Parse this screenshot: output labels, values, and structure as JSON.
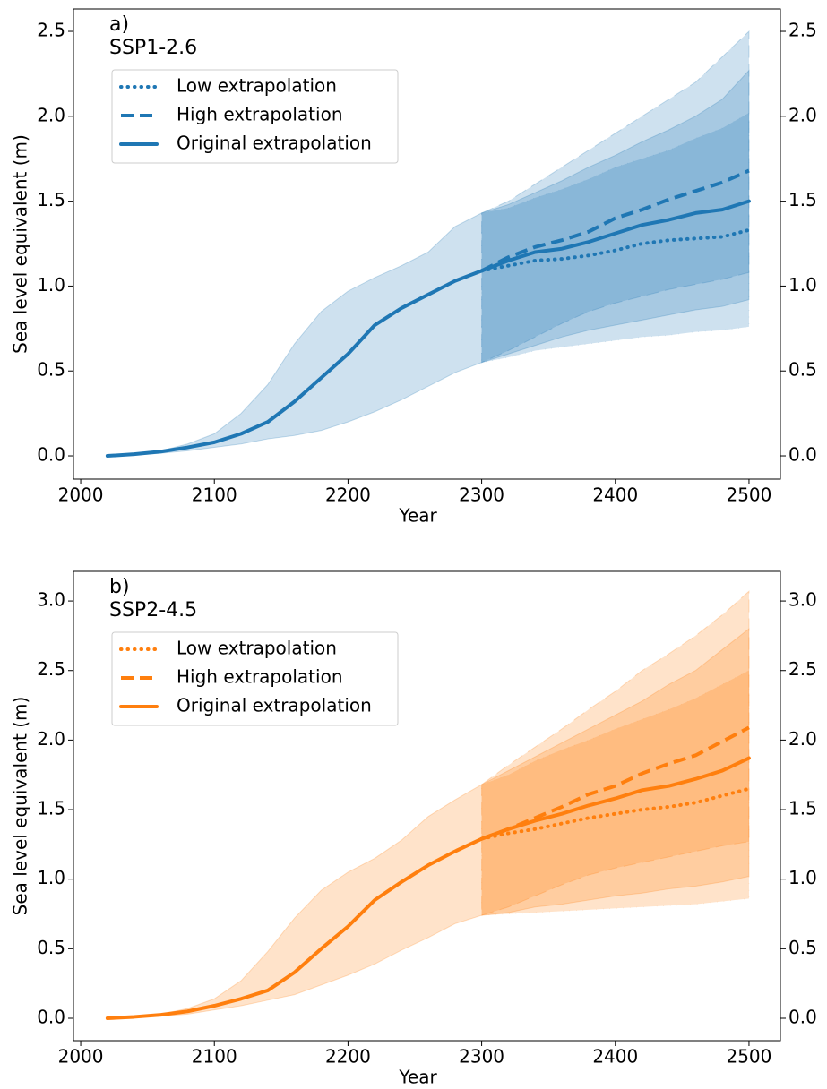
{
  "chart_data": [
    {
      "type": "line",
      "label": "a)",
      "title": "SSP1-2.6",
      "xlabel": "Year",
      "ylabel": "Sea level equivalent (m)",
      "x": [
        2020,
        2040,
        2060,
        2080,
        2100,
        2120,
        2140,
        2160,
        2180,
        2200,
        2220,
        2240,
        2260,
        2280,
        2300,
        2320,
        2340,
        2360,
        2380,
        2400,
        2420,
        2440,
        2460,
        2480,
        2500
      ],
      "xlim": [
        1994.6,
        2523.5
      ],
      "xticks": [
        2000,
        2100,
        2200,
        2300,
        2400,
        2500
      ],
      "ylim": [
        -0.137,
        2.632
      ],
      "yticks": [
        {
          "value": 0,
          "label": "0.0"
        },
        0.5,
        {
          "value": 1,
          "label": "1.0"
        },
        1.5,
        {
          "value": 2,
          "label": "2.0"
        },
        2.5
      ],
      "right_ticks": true,
      "legend": "upper left",
      "series": [
        {
          "name": "Low extrapolation",
          "color": "#1f77b4",
          "style": "dotted",
          "values": [
            null,
            null,
            null,
            null,
            null,
            null,
            null,
            null,
            null,
            null,
            null,
            null,
            null,
            null,
            1.09,
            1.12,
            1.15,
            1.16,
            1.18,
            1.21,
            1.25,
            1.27,
            1.28,
            1.29,
            1.33
          ],
          "lower": [
            null,
            null,
            null,
            null,
            null,
            null,
            null,
            null,
            null,
            null,
            null,
            null,
            null,
            null,
            0.55,
            0.58,
            0.62,
            0.64,
            0.66,
            0.68,
            0.7,
            0.71,
            0.73,
            0.74,
            0.76
          ],
          "upper": [
            null,
            null,
            null,
            null,
            null,
            null,
            null,
            null,
            null,
            null,
            null,
            null,
            null,
            null,
            1.43,
            1.46,
            1.52,
            1.57,
            1.63,
            1.7,
            1.75,
            1.8,
            1.87,
            1.93,
            2.02
          ]
        },
        {
          "name": "High extrapolation",
          "color": "#1f77b4",
          "style": "dashed",
          "values": [
            null,
            null,
            null,
            null,
            null,
            null,
            null,
            null,
            null,
            null,
            null,
            null,
            null,
            null,
            1.09,
            1.17,
            1.23,
            1.27,
            1.32,
            1.4,
            1.45,
            1.51,
            1.56,
            1.61,
            1.68
          ],
          "lower": [
            null,
            null,
            null,
            null,
            null,
            null,
            null,
            null,
            null,
            null,
            null,
            null,
            null,
            null,
            0.55,
            0.62,
            0.7,
            0.78,
            0.85,
            0.9,
            0.94,
            0.98,
            1.01,
            1.04,
            1.08
          ],
          "upper": [
            null,
            null,
            null,
            null,
            null,
            null,
            null,
            null,
            null,
            null,
            null,
            null,
            null,
            null,
            1.43,
            1.5,
            1.6,
            1.7,
            1.8,
            1.9,
            2.0,
            2.1,
            2.2,
            2.35,
            2.5
          ]
        },
        {
          "name": "Original extrapolation",
          "color": "#1f77b4",
          "style": "solid",
          "values": [
            0,
            0.01,
            0.025,
            0.05,
            0.08,
            0.13,
            0.2,
            0.32,
            0.46,
            0.6,
            0.77,
            0.87,
            0.95,
            1.03,
            1.09,
            1.15,
            1.2,
            1.22,
            1.26,
            1.31,
            1.36,
            1.39,
            1.43,
            1.45,
            1.5
          ],
          "lower": [
            0,
            0.005,
            0.015,
            0.03,
            0.05,
            0.07,
            0.1,
            0.12,
            0.15,
            0.2,
            0.26,
            0.33,
            0.41,
            0.49,
            0.55,
            0.6,
            0.65,
            0.7,
            0.74,
            0.77,
            0.8,
            0.83,
            0.86,
            0.88,
            0.92
          ],
          "upper": [
            0,
            0.01,
            0.03,
            0.07,
            0.13,
            0.25,
            0.42,
            0.66,
            0.85,
            0.97,
            1.05,
            1.12,
            1.2,
            1.35,
            1.43,
            1.48,
            1.55,
            1.62,
            1.7,
            1.77,
            1.85,
            1.92,
            2.0,
            2.1,
            2.27
          ]
        }
      ]
    },
    {
      "type": "line",
      "label": "b)",
      "title": "SSP2-4.5",
      "xlabel": "Year",
      "ylabel": "Sea level equivalent (m)",
      "x": [
        2020,
        2040,
        2060,
        2080,
        2100,
        2120,
        2140,
        2160,
        2180,
        2200,
        2220,
        2240,
        2260,
        2280,
        2300,
        2320,
        2340,
        2360,
        2380,
        2400,
        2420,
        2440,
        2460,
        2480,
        2500
      ],
      "xlim": [
        1994.6,
        2523.5
      ],
      "xticks": [
        2000,
        2100,
        2200,
        2300,
        2400,
        2500
      ],
      "ylim": [
        -0.161,
        3.213
      ],
      "yticks": [
        {
          "value": 0,
          "label": "0.0"
        },
        0.5,
        {
          "value": 1,
          "label": "1.0"
        },
        1.5,
        {
          "value": 2,
          "label": "2.0"
        },
        2.5,
        {
          "value": 3,
          "label": "3.0"
        }
      ],
      "right_ticks": true,
      "legend": "upper left",
      "series": [
        {
          "name": "Low extrapolation",
          "color": "#ff7f0e",
          "style": "dotted",
          "values": [
            null,
            null,
            null,
            null,
            null,
            null,
            null,
            null,
            null,
            null,
            null,
            null,
            null,
            null,
            1.29,
            1.33,
            1.36,
            1.4,
            1.44,
            1.47,
            1.5,
            1.52,
            1.55,
            1.6,
            1.65
          ],
          "lower": [
            null,
            null,
            null,
            null,
            null,
            null,
            null,
            null,
            null,
            null,
            null,
            null,
            null,
            null,
            0.74,
            0.75,
            0.76,
            0.77,
            0.78,
            0.79,
            0.8,
            0.81,
            0.82,
            0.84,
            0.86
          ],
          "upper": [
            null,
            null,
            null,
            null,
            null,
            null,
            null,
            null,
            null,
            null,
            null,
            null,
            null,
            null,
            1.68,
            1.75,
            1.85,
            1.93,
            2.0,
            2.08,
            2.15,
            2.22,
            2.3,
            2.4,
            2.5
          ]
        },
        {
          "name": "High extrapolation",
          "color": "#ff7f0e",
          "style": "dashed",
          "values": [
            null,
            null,
            null,
            null,
            null,
            null,
            null,
            null,
            null,
            null,
            null,
            null,
            null,
            null,
            1.29,
            1.36,
            1.44,
            1.52,
            1.61,
            1.67,
            1.76,
            1.83,
            1.89,
            1.99,
            2.09
          ],
          "lower": [
            null,
            null,
            null,
            null,
            null,
            null,
            null,
            null,
            null,
            null,
            null,
            null,
            null,
            null,
            0.74,
            0.8,
            0.88,
            0.96,
            1.03,
            1.08,
            1.12,
            1.16,
            1.2,
            1.24,
            1.27
          ],
          "upper": [
            null,
            null,
            null,
            null,
            null,
            null,
            null,
            null,
            null,
            null,
            null,
            null,
            null,
            null,
            1.68,
            1.82,
            1.95,
            2.08,
            2.22,
            2.35,
            2.5,
            2.62,
            2.75,
            2.9,
            3.07
          ]
        },
        {
          "name": "Original extrapolation",
          "color": "#ff7f0e",
          "style": "solid",
          "values": [
            0,
            0.01,
            0.025,
            0.05,
            0.09,
            0.14,
            0.2,
            0.33,
            0.5,
            0.66,
            0.85,
            0.98,
            1.1,
            1.2,
            1.29,
            1.36,
            1.42,
            1.47,
            1.53,
            1.58,
            1.64,
            1.67,
            1.72,
            1.78,
            1.87
          ],
          "lower": [
            0,
            0.005,
            0.015,
            0.03,
            0.06,
            0.09,
            0.13,
            0.17,
            0.24,
            0.31,
            0.39,
            0.49,
            0.58,
            0.68,
            0.74,
            0.76,
            0.8,
            0.82,
            0.85,
            0.88,
            0.9,
            0.93,
            0.95,
            0.98,
            1.02
          ],
          "upper": [
            0,
            0.01,
            0.03,
            0.07,
            0.14,
            0.27,
            0.48,
            0.72,
            0.92,
            1.05,
            1.15,
            1.28,
            1.45,
            1.57,
            1.68,
            1.78,
            1.88,
            1.98,
            2.08,
            2.18,
            2.28,
            2.4,
            2.5,
            2.65,
            2.8
          ]
        }
      ]
    }
  ]
}
